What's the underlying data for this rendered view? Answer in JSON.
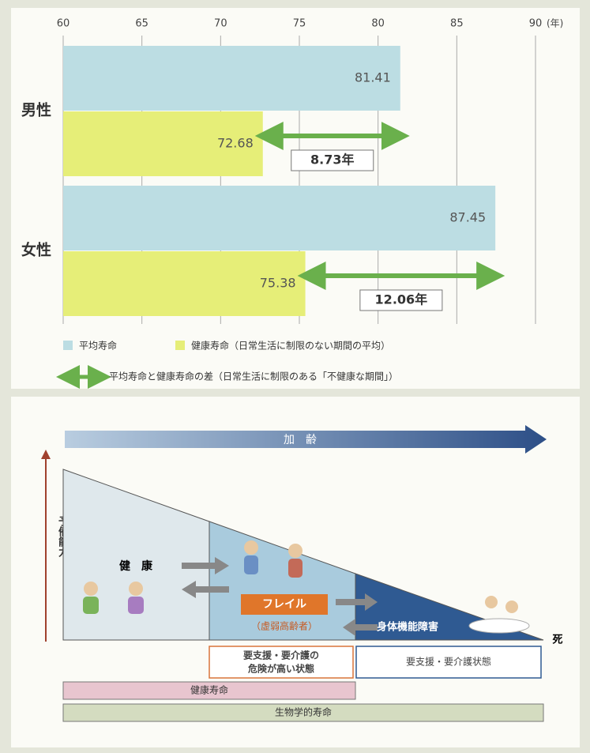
{
  "chart_data": {
    "type": "hbar",
    "categories": [
      "男性",
      "女性"
    ],
    "series": [
      {
        "name": "平均寿命",
        "color": "#bcdde3",
        "values": [
          81.41,
          87.45
        ]
      },
      {
        "name": "健康寿命（日常生活に制限のない期間の平均）",
        "color": "#e6ee78",
        "values": [
          72.68,
          75.38
        ]
      }
    ],
    "xlim": [
      60,
      90
    ],
    "xticks": [
      60,
      65,
      70,
      75,
      80,
      85,
      90
    ],
    "x_label": "(年)",
    "grid": true,
    "gap_color": "#6ab04c",
    "gap_labels": [
      "8.73年",
      "12.06年"
    ],
    "gap_legend": "平均寿命と健康寿命の差（日常生活に制限のある「不健康な期間」）"
  },
  "diagram": {
    "aging_label": "加　齢",
    "reserve_label": "予備能力",
    "healthy_label": "健　康",
    "frailty_label": "フレイル",
    "frailty_note": "（虚弱高齢者）",
    "disability_label": "身体機能障害",
    "death_label": "死",
    "at_risk_lines": [
      "要支援・要介護の",
      "危険が高い状態"
    ],
    "care_label": "要支援・要介護状態",
    "healthy_span_label": "健康寿命",
    "biological_span_label": "生物学的寿命"
  }
}
